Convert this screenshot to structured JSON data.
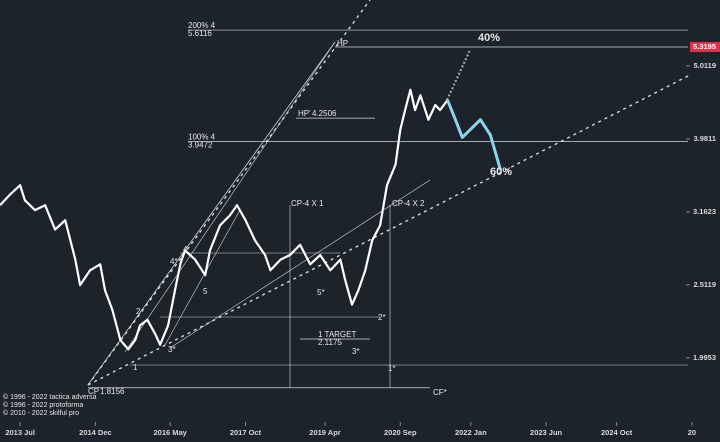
{
  "chart_data": {
    "type": "line",
    "log_scale_y": true,
    "xlim": [
      2013.12,
      2026.7
    ],
    "ylim": [
      1.64,
      6.17
    ],
    "xticks": [
      {
        "value": 2013.5,
        "label": "2013 Jul"
      },
      {
        "value": 2014.92,
        "label": "2014 Dec"
      },
      {
        "value": 2016.33,
        "label": "2016 May"
      },
      {
        "value": 2017.75,
        "label": "2017 Oct"
      },
      {
        "value": 2019.25,
        "label": "2019 Apr"
      },
      {
        "value": 2020.67,
        "label": "2020 Sep"
      },
      {
        "value": 2022.0,
        "label": "2022 Jan"
      },
      {
        "value": 2023.42,
        "label": "2023 Jun"
      },
      {
        "value": 2024.75,
        "label": "2024 Oct"
      },
      {
        "value": 2026.17,
        "label": "20"
      }
    ],
    "yticks": [
      5.0119,
      3.9811,
      3.1623,
      2.5119,
      1.9953
    ],
    "last_price": 5.3195,
    "last_price_color": "#e0314b",
    "levels": [
      {
        "label": "200% 4",
        "value": 5.6116
      },
      {
        "label": "100% 4",
        "value": 3.9472
      },
      {
        "label": "HP'",
        "value": 4.2506
      },
      {
        "label": "1 TARGET",
        "value": 2.1175
      },
      {
        "label": "CP",
        "value": 1.8156
      }
    ],
    "series": [
      {
        "name": "price",
        "color": "#ffffff",
        "x": [
          2013.12,
          2013.31,
          2013.5,
          2013.59,
          2013.78,
          2013.97,
          2014.16,
          2014.35,
          2014.54,
          2014.63,
          2014.82,
          2015.01,
          2015.1,
          2015.24,
          2015.39,
          2015.54,
          2015.67,
          2015.76,
          2015.9,
          2016.05,
          2016.14,
          2016.29,
          2016.42,
          2016.52,
          2016.61,
          2016.8,
          2016.99,
          2017.08,
          2017.27,
          2017.46,
          2017.59,
          2017.75,
          2017.93,
          2018.12,
          2018.22,
          2018.41,
          2018.59,
          2018.78,
          2018.97,
          2019.16,
          2019.35,
          2019.54,
          2019.63,
          2019.76,
          2019.88,
          2020.01,
          2020.14,
          2020.29,
          2020.42,
          2020.58,
          2020.67,
          2020.76,
          2020.86,
          2020.95,
          2021.05,
          2021.2,
          2021.33,
          2021.42,
          2021.56
        ],
        "values": [
          3.23,
          3.34,
          3.44,
          3.28,
          3.18,
          3.23,
          2.99,
          3.08,
          2.72,
          2.51,
          2.63,
          2.68,
          2.47,
          2.32,
          2.11,
          2.05,
          2.11,
          2.21,
          2.25,
          2.15,
          2.08,
          2.21,
          2.47,
          2.68,
          2.8,
          2.72,
          2.59,
          2.8,
          3.03,
          3.13,
          3.23,
          3.08,
          2.89,
          2.76,
          2.63,
          2.72,
          2.76,
          2.85,
          2.68,
          2.76,
          2.63,
          2.72,
          2.55,
          2.36,
          2.47,
          2.63,
          2.89,
          3.03,
          3.44,
          3.67,
          4.1,
          4.36,
          4.65,
          4.36,
          4.57,
          4.23,
          4.43,
          4.36,
          4.5
        ]
      },
      {
        "name": "projection",
        "color": "#8fd3ea",
        "x": [
          2021.56,
          2021.71,
          2021.84,
          2021.99,
          2022.18,
          2022.37,
          2022.56
        ],
        "values": [
          4.5,
          4.23,
          4.0,
          4.1,
          4.23,
          4.03,
          3.61
        ]
      }
    ],
    "annotations": [
      "HP",
      "40%",
      "60%",
      "CP-4 X 1",
      "CP-4 X 2",
      "CF*",
      "1",
      "2",
      "3*",
      "4",
      "4*",
      "5",
      "5*",
      "2*",
      "3*",
      "1*"
    ],
    "copyright": [
      "© 1996 - 2022 tactica adversa",
      "© 1996 - 2022 protoforma",
      "© 2010 - 2022 skilful pro"
    ]
  }
}
